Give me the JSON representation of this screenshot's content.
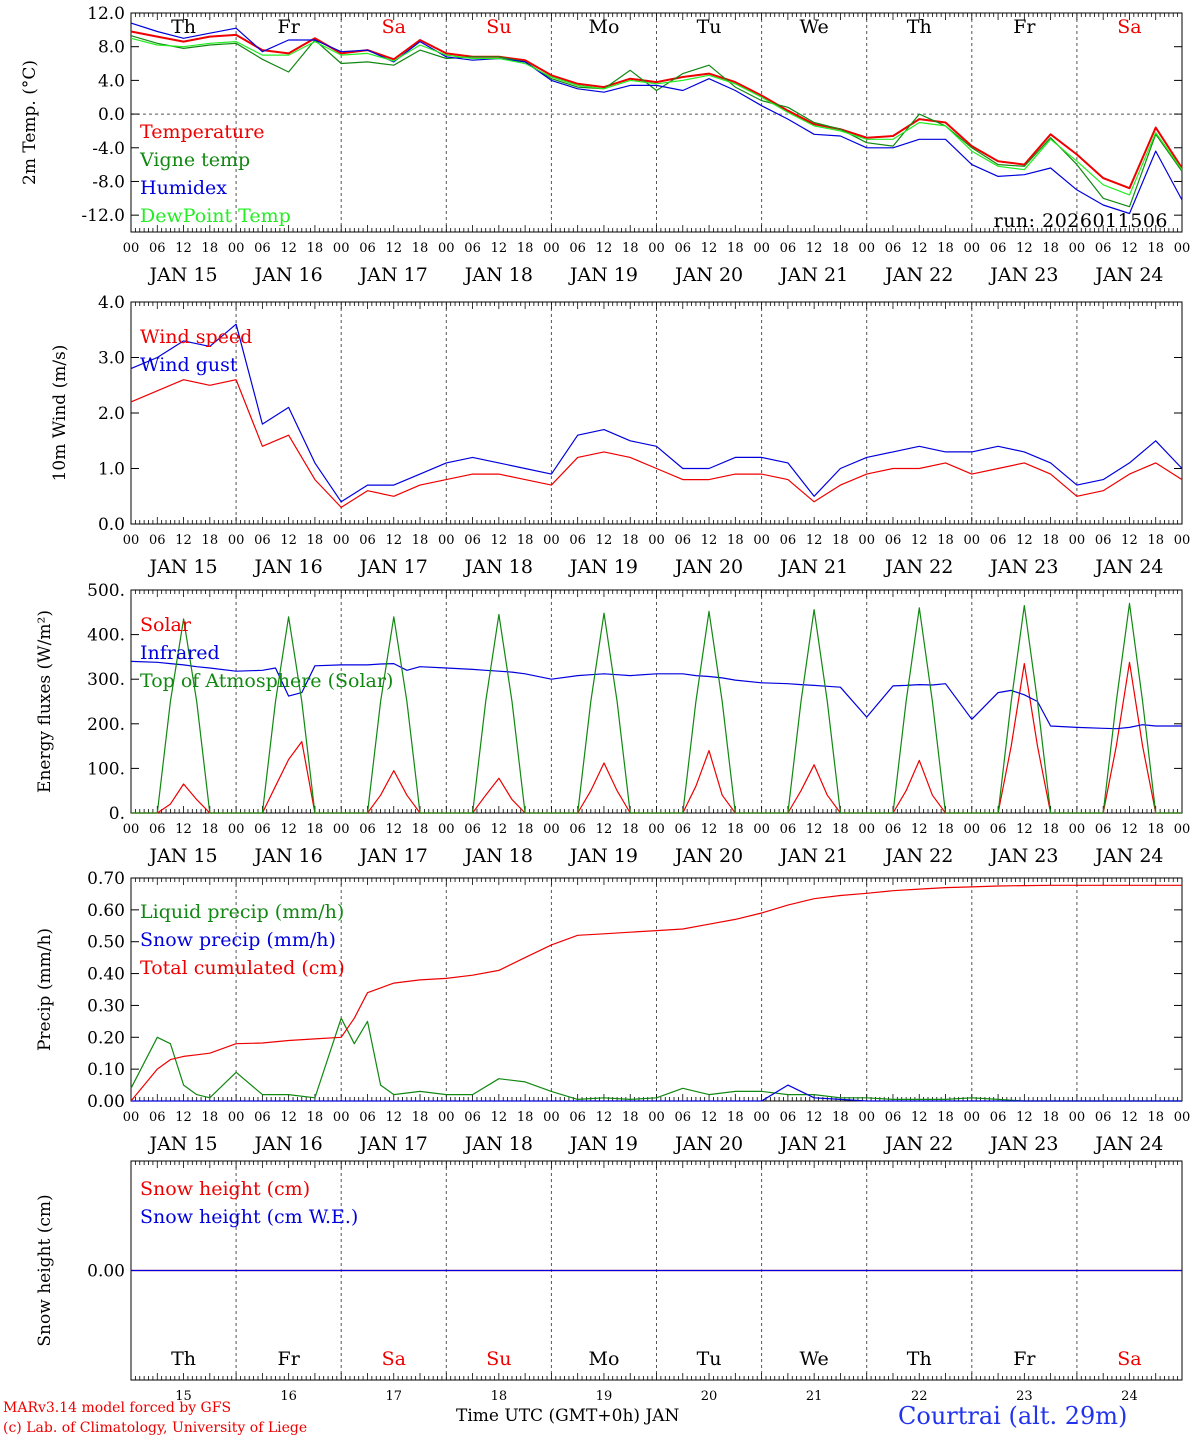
{
  "footer": {
    "model": "MARv3.14 model forced by GFS",
    "credit": "(c) Lab. of Climatology, University of Liege",
    "xlabel": "Time UTC (GMT+0h) JAN",
    "station": "Courtrai (alt. 29m)"
  },
  "days": {
    "weekdays": [
      "Th",
      "Fr",
      "Sa",
      "Su",
      "Mo",
      "Tu",
      "We",
      "Th",
      "Fr",
      "Sa"
    ],
    "weekend": [
      false,
      false,
      true,
      true,
      false,
      false,
      false,
      false,
      false,
      true
    ],
    "dates": [
      "JAN 15",
      "JAN 16",
      "JAN 17",
      "JAN 18",
      "JAN 19",
      "JAN 20",
      "JAN 21",
      "JAN 22",
      "JAN 23",
      "JAN 24"
    ],
    "day_numbers": [
      "15",
      "16",
      "17",
      "18",
      "19",
      "20",
      "21",
      "22",
      "23",
      "24"
    ],
    "hour_ticks": [
      "00",
      "06",
      "12",
      "18"
    ],
    "final_tick": "00"
  },
  "colors": {
    "red": "#ee0000",
    "green": "#118811",
    "blue": "#0000dd",
    "lightgreen": "#22ee22",
    "title_blue": "#2233ee"
  },
  "chart_data": [
    {
      "id": "temp",
      "type": "line",
      "ylabel": "2m Temp. (°C)",
      "ylim": [
        -14,
        12
      ],
      "yticks": [
        12.0,
        8.0,
        4.0,
        0.0,
        -4.0,
        -8.0,
        -12.0
      ],
      "ytick_labels": [
        "12.0",
        "8.0",
        "4.0",
        "0.0",
        "-4.0",
        "-8.0",
        "-12.0"
      ],
      "zero_line": true,
      "annotation": "run: 2026011506",
      "x_hours": [
        0,
        6,
        12,
        18,
        24,
        30,
        36,
        42,
        48,
        54,
        60,
        66,
        72,
        78,
        84,
        90,
        96,
        102,
        108,
        114,
        120,
        126,
        132,
        138,
        144,
        150,
        156,
        162,
        168,
        174,
        180,
        186,
        192,
        198,
        204,
        210,
        216,
        222,
        228,
        234,
        240
      ],
      "series": [
        {
          "name": "Temperature",
          "color": "red",
          "values": [
            9.8,
            9.2,
            8.6,
            9.2,
            9.4,
            7.6,
            7.2,
            9.0,
            7.2,
            7.6,
            6.5,
            8.8,
            7.2,
            6.8,
            6.8,
            6.4,
            4.6,
            3.6,
            3.2,
            4.2,
            3.8,
            4.4,
            4.8,
            3.8,
            2.2,
            0.4,
            -1.2,
            -1.8,
            -2.8,
            -2.6,
            -0.6,
            -1.0,
            -3.8,
            -5.6,
            -6.0,
            -2.4,
            -4.8,
            -7.6,
            -8.8,
            -1.6,
            -6.4
          ]
        },
        {
          "name": "Vigne temp",
          "color": "green",
          "values": [
            9.3,
            8.4,
            7.8,
            8.2,
            8.4,
            6.5,
            5.0,
            8.8,
            6.0,
            6.2,
            5.8,
            7.6,
            6.6,
            6.8,
            6.8,
            6.2,
            4.2,
            3.2,
            3.0,
            5.2,
            2.8,
            4.8,
            5.8,
            3.2,
            1.6,
            0.8,
            -1.0,
            -1.8,
            -3.4,
            -3.8,
            0.0,
            -1.4,
            -4.0,
            -6.0,
            -6.2,
            -2.8,
            -6.0,
            -10.0,
            -11.0,
            -2.4,
            -6.8
          ]
        },
        {
          "name": "Humidex",
          "color": "blue",
          "values": [
            10.8,
            9.8,
            9.0,
            9.6,
            10.2,
            7.4,
            8.8,
            8.8,
            7.4,
            7.6,
            6.2,
            8.6,
            6.8,
            6.4,
            6.6,
            6.2,
            4.0,
            3.0,
            2.6,
            3.4,
            3.4,
            2.8,
            4.2,
            2.8,
            1.0,
            -0.6,
            -2.4,
            -2.6,
            -4.0,
            -4.0,
            -3.0,
            -3.0,
            -6.0,
            -7.4,
            -7.2,
            -6.4,
            -9.0,
            -10.8,
            -11.8,
            -4.4,
            -10.2
          ]
        },
        {
          "name": "DewPoint Temp",
          "color": "lightgreen",
          "values": [
            9.0,
            8.2,
            8.0,
            8.4,
            8.6,
            7.0,
            7.0,
            8.6,
            7.0,
            7.2,
            6.3,
            8.2,
            7.0,
            6.6,
            6.6,
            6.0,
            4.4,
            3.4,
            3.0,
            4.0,
            3.6,
            4.0,
            4.6,
            3.6,
            2.0,
            0.2,
            -1.4,
            -2.0,
            -3.0,
            -3.0,
            -1.0,
            -1.4,
            -4.4,
            -6.2,
            -6.6,
            -3.0,
            -5.6,
            -8.4,
            -9.6,
            -2.2,
            -6.6
          ]
        }
      ]
    },
    {
      "id": "wind",
      "type": "line",
      "ylabel": "10m Wind (m/s)",
      "ylim": [
        0,
        4
      ],
      "yticks": [
        4.0,
        3.0,
        2.0,
        1.0,
        0.0
      ],
      "ytick_labels": [
        "4.0",
        "3.0",
        "2.0",
        "1.0",
        "0.0"
      ],
      "x_hours": [
        0,
        6,
        12,
        18,
        24,
        30,
        36,
        42,
        48,
        54,
        60,
        66,
        72,
        78,
        84,
        90,
        96,
        102,
        108,
        114,
        120,
        126,
        132,
        138,
        144,
        150,
        156,
        162,
        168,
        174,
        180,
        186,
        192,
        198,
        204,
        210,
        216,
        222,
        228,
        234,
        240
      ],
      "series": [
        {
          "name": "Wind speed",
          "color": "red",
          "values": [
            2.2,
            2.4,
            2.6,
            2.5,
            2.6,
            1.4,
            1.6,
            0.8,
            0.3,
            0.6,
            0.5,
            0.7,
            0.8,
            0.9,
            0.9,
            0.8,
            0.7,
            1.2,
            1.3,
            1.2,
            1.0,
            0.8,
            0.8,
            0.9,
            0.9,
            0.8,
            0.4,
            0.7,
            0.9,
            1.0,
            1.0,
            1.1,
            0.9,
            1.0,
            1.1,
            0.9,
            0.5,
            0.6,
            0.9,
            1.1,
            0.8
          ]
        },
        {
          "name": "Wind gust",
          "color": "blue",
          "values": [
            2.8,
            3.0,
            3.3,
            3.2,
            3.6,
            1.8,
            2.1,
            1.1,
            0.4,
            0.7,
            0.7,
            0.9,
            1.1,
            1.2,
            1.1,
            1.0,
            0.9,
            1.6,
            1.7,
            1.5,
            1.4,
            1.0,
            1.0,
            1.2,
            1.2,
            1.1,
            0.5,
            1.0,
            1.2,
            1.3,
            1.4,
            1.3,
            1.3,
            1.4,
            1.3,
            1.1,
            0.7,
            0.8,
            1.1,
            1.5,
            1.0
          ]
        }
      ]
    },
    {
      "id": "flux",
      "type": "line",
      "ylabel": "Energy fluxes (W/m²)",
      "ylim": [
        0,
        500
      ],
      "yticks": [
        500,
        400,
        300,
        200,
        100,
        0
      ],
      "ytick_labels": [
        "500.",
        "400.",
        "300.",
        "200.",
        "100.",
        "0."
      ],
      "x_hours": [
        0,
        6,
        9,
        12,
        15,
        18,
        24,
        30,
        33,
        36,
        39,
        42,
        48,
        54,
        57,
        60,
        63,
        66,
        72,
        78,
        81,
        84,
        87,
        90,
        96,
        102,
        105,
        108,
        111,
        114,
        120,
        126,
        129,
        132,
        135,
        138,
        144,
        150,
        153,
        156,
        159,
        162,
        168,
        174,
        177,
        180,
        183,
        186,
        192,
        198,
        201,
        204,
        207,
        210,
        216,
        222,
        225,
        228,
        231,
        234,
        240
      ],
      "series": [
        {
          "name": "Solar",
          "color": "red",
          "values": [
            0,
            0,
            20,
            65,
            30,
            0,
            0,
            0,
            60,
            120,
            160,
            0,
            0,
            0,
            40,
            95,
            40,
            0,
            0,
            0,
            40,
            78,
            30,
            0,
            0,
            0,
            50,
            112,
            50,
            0,
            0,
            0,
            60,
            140,
            40,
            0,
            0,
            0,
            50,
            108,
            40,
            0,
            0,
            0,
            50,
            118,
            40,
            0,
            0,
            0,
            150,
            335,
            150,
            0,
            0,
            0,
            150,
            338,
            150,
            0,
            0
          ]
        },
        {
          "name": "Infrared",
          "color": "blue",
          "values": [
            340,
            338,
            335,
            332,
            328,
            325,
            318,
            320,
            325,
            262,
            270,
            330,
            332,
            332,
            334,
            335,
            320,
            328,
            325,
            322,
            320,
            318,
            316,
            312,
            300,
            308,
            310,
            312,
            310,
            308,
            312,
            312,
            308,
            306,
            303,
            298,
            292,
            290,
            288,
            286,
            284,
            282,
            215,
            285,
            286,
            288,
            287,
            290,
            210,
            270,
            275,
            265,
            250,
            195,
            192,
            190,
            189,
            192,
            198,
            195,
            195
          ]
        },
        {
          "name": "Top of Atmosphere (Solar)",
          "color": "green",
          "values": [
            0,
            0,
            250,
            435,
            250,
            0,
            0,
            0,
            250,
            440,
            250,
            0,
            0,
            0,
            250,
            440,
            250,
            0,
            0,
            0,
            250,
            445,
            250,
            0,
            0,
            0,
            250,
            448,
            250,
            0,
            0,
            0,
            250,
            452,
            250,
            0,
            0,
            0,
            250,
            456,
            250,
            0,
            0,
            0,
            250,
            460,
            250,
            0,
            0,
            0,
            250,
            465,
            250,
            0,
            0,
            0,
            250,
            470,
            250,
            0,
            0
          ]
        }
      ]
    },
    {
      "id": "precip",
      "type": "line",
      "ylabel": "Precip (mm/h)",
      "ylim": [
        0,
        0.7
      ],
      "yticks": [
        0.7,
        0.6,
        0.5,
        0.4,
        0.3,
        0.2,
        0.1,
        0.0
      ],
      "ytick_labels": [
        "0.70",
        "0.60",
        "0.50",
        "0.40",
        "0.30",
        "0.20",
        "0.10",
        "0.00"
      ],
      "x_hours": [
        0,
        6,
        9,
        12,
        15,
        18,
        24,
        30,
        36,
        42,
        48,
        51,
        54,
        57,
        60,
        66,
        72,
        78,
        84,
        90,
        96,
        102,
        108,
        114,
        120,
        126,
        132,
        138,
        144,
        150,
        156,
        162,
        168,
        174,
        180,
        186,
        192,
        198,
        204,
        210,
        216,
        222,
        228,
        234,
        240
      ],
      "series": [
        {
          "name": "Liquid precip (mm/h)",
          "color": "green",
          "values": [
            0.04,
            0.2,
            0.18,
            0.05,
            0.02,
            0.01,
            0.09,
            0.02,
            0.02,
            0.01,
            0.26,
            0.18,
            0.25,
            0.05,
            0.02,
            0.03,
            0.02,
            0.02,
            0.07,
            0.06,
            0.03,
            0.005,
            0.01,
            0.005,
            0.01,
            0.04,
            0.02,
            0.03,
            0.03,
            0.02,
            0.02,
            0.01,
            0.01,
            0.005,
            0.005,
            0.005,
            0.01,
            0.005,
            0.0,
            0.0,
            0.0,
            0.0,
            0.0,
            0.0,
            0.0
          ]
        },
        {
          "name": "Snow precip (mm/h)",
          "color": "blue",
          "values": [
            0,
            0,
            0,
            0,
            0,
            0,
            0,
            0,
            0,
            0,
            0,
            0,
            0,
            0,
            0,
            0,
            0,
            0,
            0,
            0,
            0,
            0,
            0,
            0,
            0,
            0,
            0,
            0,
            0,
            0.05,
            0.01,
            0.005,
            0,
            0,
            0,
            0,
            0,
            0,
            0,
            0,
            0,
            0,
            0,
            0,
            0
          ]
        },
        {
          "name": "Total cumulated (cm)",
          "color": "red",
          "values": [
            0.0,
            0.1,
            0.13,
            0.14,
            0.145,
            0.15,
            0.18,
            0.182,
            0.19,
            0.195,
            0.2,
            0.26,
            0.34,
            0.355,
            0.37,
            0.38,
            0.385,
            0.395,
            0.41,
            0.45,
            0.49,
            0.52,
            0.525,
            0.53,
            0.535,
            0.54,
            0.555,
            0.57,
            0.59,
            0.615,
            0.635,
            0.645,
            0.652,
            0.66,
            0.665,
            0.67,
            0.672,
            0.675,
            0.676,
            0.677,
            0.677,
            0.677,
            0.677,
            0.677,
            0.677
          ]
        }
      ]
    },
    {
      "id": "snow",
      "type": "line",
      "ylabel": "Snow height (cm)",
      "ylim": [
        -1,
        1
      ],
      "yticks": [
        0.0
      ],
      "ytick_labels": [
        "0.00"
      ],
      "x_hours": [
        0,
        240
      ],
      "series": [
        {
          "name": "Snow height (cm)",
          "color": "red",
          "values": [
            0,
            0
          ]
        },
        {
          "name": "Snow height (cm W.E.)",
          "color": "blue",
          "values": [
            0,
            0
          ]
        }
      ]
    }
  ]
}
